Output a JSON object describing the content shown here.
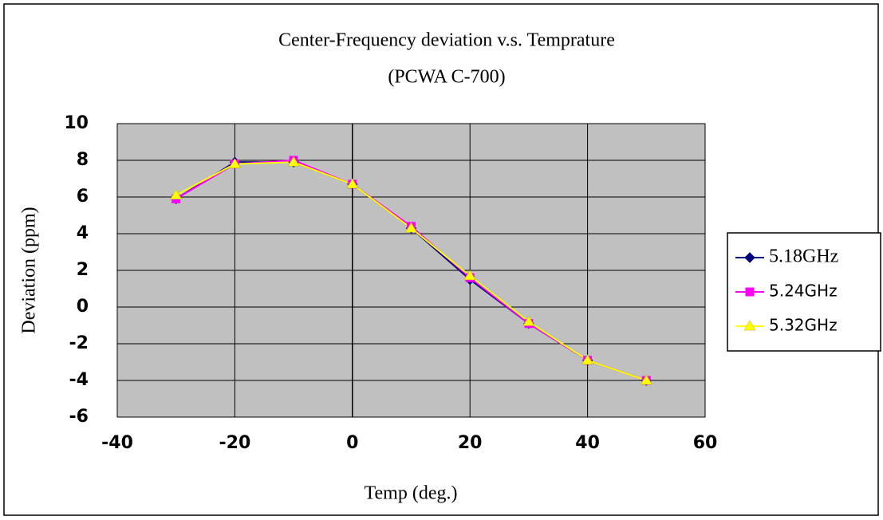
{
  "chart_data": {
    "type": "line",
    "title": "Center-Frequency deviation v.s. Temprature",
    "subtitle": "(PCWA C-700)",
    "x_label": "Temp (deg.)",
    "y_label": "Deviation (ppm)",
    "x": [
      -30,
      -20,
      -10,
      0,
      10,
      20,
      30,
      40,
      50
    ],
    "series": [
      {
        "name": "5.18GHz",
        "color": "#000080",
        "marker": "diamond",
        "values": [
          5.9,
          7.9,
          7.9,
          6.7,
          4.3,
          1.5,
          -0.9,
          -2.9,
          -4.0
        ]
      },
      {
        "name": "5.24GHz",
        "color": "#ff00ff",
        "marker": "square",
        "values": [
          5.9,
          7.8,
          8.0,
          6.7,
          4.4,
          1.6,
          -0.9,
          -2.9,
          -4.0
        ]
      },
      {
        "name": "5.32GHz",
        "color": "#ffff00",
        "marker": "triangle",
        "values": [
          6.1,
          7.8,
          7.9,
          6.7,
          4.3,
          1.7,
          -0.8,
          -2.9,
          -4.0
        ]
      }
    ],
    "xlim": [
      -40,
      60
    ],
    "xticks": [
      -40,
      -20,
      0,
      20,
      40,
      60
    ],
    "ylim": [
      -6,
      10
    ],
    "yticks": [
      -6,
      -4,
      -2,
      0,
      2,
      4,
      6,
      8,
      10
    ],
    "grid": true,
    "legend": "right"
  }
}
